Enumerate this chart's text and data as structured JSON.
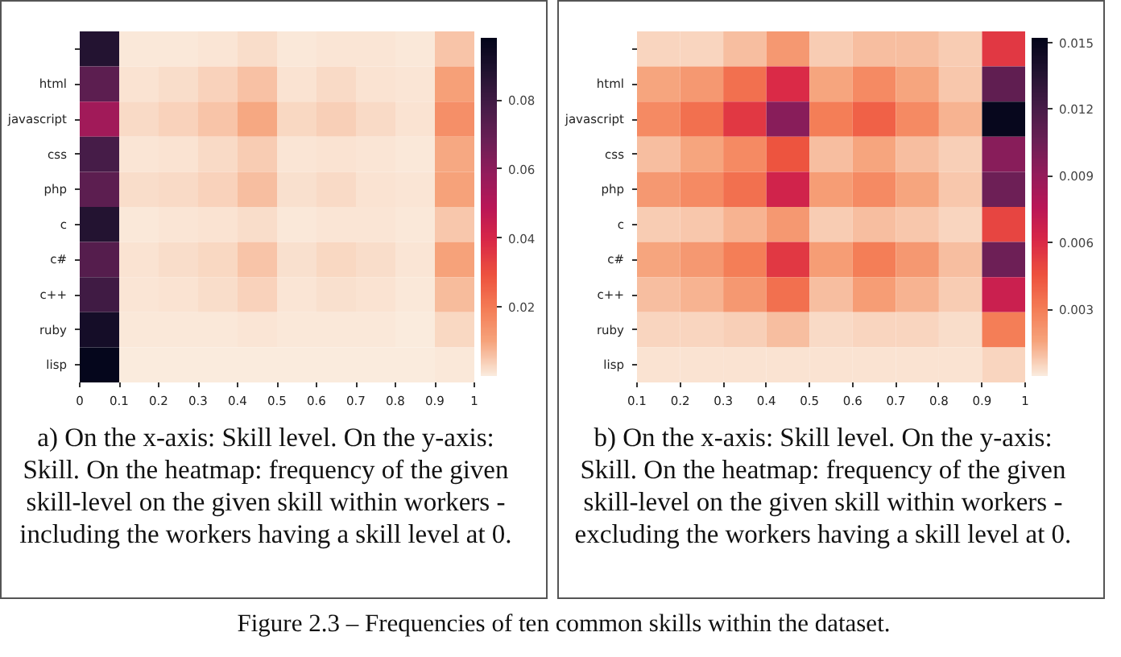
{
  "chart_data": [
    {
      "type": "heatmap",
      "x": [
        0.05,
        0.15,
        0.25,
        0.35,
        0.45,
        0.55,
        0.65,
        0.75,
        0.85,
        0.95
      ],
      "y_categories": [
        null,
        "html",
        "javascript",
        "css",
        "php",
        "c",
        "c#",
        "c++",
        "ruby",
        "lisp"
      ],
      "cells": [
        [
          0.088,
          0.0005,
          0.0005,
          0.001,
          0.002,
          0.0007,
          0.001,
          0.001,
          0.0007,
          0.0055
        ],
        [
          0.072,
          0.0015,
          0.002,
          0.0035,
          0.006,
          0.0015,
          0.0025,
          0.0015,
          0.0008,
          0.011
        ],
        [
          0.055,
          0.0025,
          0.0035,
          0.0055,
          0.0095,
          0.003,
          0.004,
          0.0025,
          0.0012,
          0.015
        ],
        [
          0.078,
          0.001,
          0.0015,
          0.0025,
          0.0045,
          0.001,
          0.0015,
          0.001,
          0.0006,
          0.0095
        ],
        [
          0.072,
          0.002,
          0.0025,
          0.0035,
          0.0065,
          0.0018,
          0.0025,
          0.0015,
          0.0008,
          0.0105
        ],
        [
          0.088,
          0.0007,
          0.0008,
          0.0012,
          0.002,
          0.0007,
          0.001,
          0.0008,
          0.0005,
          0.005
        ],
        [
          0.074,
          0.0015,
          0.002,
          0.003,
          0.0055,
          0.0018,
          0.003,
          0.002,
          0.001,
          0.0105
        ],
        [
          0.08,
          0.001,
          0.0012,
          0.002,
          0.0035,
          0.001,
          0.0018,
          0.0012,
          0.0007,
          0.0068
        ],
        [
          0.092,
          0.0005,
          0.0005,
          0.0006,
          0.001,
          0.0004,
          0.0005,
          0.0005,
          0.0003,
          0.003
        ],
        [
          0.097,
          0.0002,
          0.0002,
          0.0002,
          0.0002,
          0.0002,
          0.0002,
          0.0002,
          0.0002,
          0.0005
        ]
      ],
      "xlim": [
        0,
        1
      ],
      "xticks": [
        0,
        0.1,
        0.2,
        0.3,
        0.4,
        0.5,
        0.6,
        0.7,
        0.8,
        0.9,
        1
      ],
      "clim": [
        0,
        0.098
      ],
      "cticks": [
        0.02,
        0.04,
        0.06,
        0.08
      ],
      "annotations": [
        "a) On the x-axis: Skill level. On the y-axis: Skill. On the heatmap: frequency of the given skill-level on the given skill within workers - including the workers having a skill level at 0."
      ]
    },
    {
      "type": "heatmap",
      "x": [
        0.15,
        0.25,
        0.35,
        0.45,
        0.55,
        0.65,
        0.75,
        0.85,
        0.95
      ],
      "y_categories": [
        null,
        "html",
        "javascript",
        "css",
        "php",
        "c",
        "c#",
        "c++",
        "ruby",
        "lisp"
      ],
      "cells": [
        [
          0.0005,
          0.0005,
          0.001,
          0.002,
          0.0007,
          0.001,
          0.001,
          0.0007,
          0.0055
        ],
        [
          0.0015,
          0.002,
          0.0035,
          0.006,
          0.0015,
          0.0025,
          0.0015,
          0.0008,
          0.011
        ],
        [
          0.0025,
          0.0035,
          0.0055,
          0.0095,
          0.003,
          0.004,
          0.0025,
          0.0012,
          0.015
        ],
        [
          0.001,
          0.0015,
          0.0025,
          0.0045,
          0.001,
          0.0015,
          0.001,
          0.0006,
          0.0095
        ],
        [
          0.002,
          0.0025,
          0.0035,
          0.0065,
          0.0018,
          0.0025,
          0.0015,
          0.0008,
          0.0105
        ],
        [
          0.0007,
          0.0008,
          0.0012,
          0.002,
          0.0007,
          0.001,
          0.0008,
          0.0005,
          0.005
        ],
        [
          0.0015,
          0.002,
          0.003,
          0.0055,
          0.0018,
          0.003,
          0.002,
          0.001,
          0.0105
        ],
        [
          0.001,
          0.0012,
          0.002,
          0.0035,
          0.001,
          0.0018,
          0.0012,
          0.0007,
          0.0068
        ],
        [
          0.0005,
          0.0005,
          0.0006,
          0.001,
          0.0004,
          0.0005,
          0.0005,
          0.0003,
          0.003
        ],
        [
          0.0002,
          0.0002,
          0.0002,
          0.0002,
          0.0002,
          0.0002,
          0.0002,
          0.0002,
          0.0005
        ]
      ],
      "xlim": [
        0.1,
        1
      ],
      "xticks": [
        0.1,
        0.2,
        0.3,
        0.4,
        0.5,
        0.6,
        0.7,
        0.8,
        0.9,
        1
      ],
      "clim": [
        0,
        0.0152
      ],
      "cticks": [
        0.003,
        0.006,
        0.009,
        0.012,
        0.015
      ],
      "annotations": [
        "b) On the x-axis: Skill level. On the y-axis: Skill. On the heatmap: frequency of the given skill-level on the given skill within workers - excluding the workers having a skill level at 0.",
        "Figure 2.3 – Frequencies of ten common skills within the dataset."
      ]
    }
  ]
}
